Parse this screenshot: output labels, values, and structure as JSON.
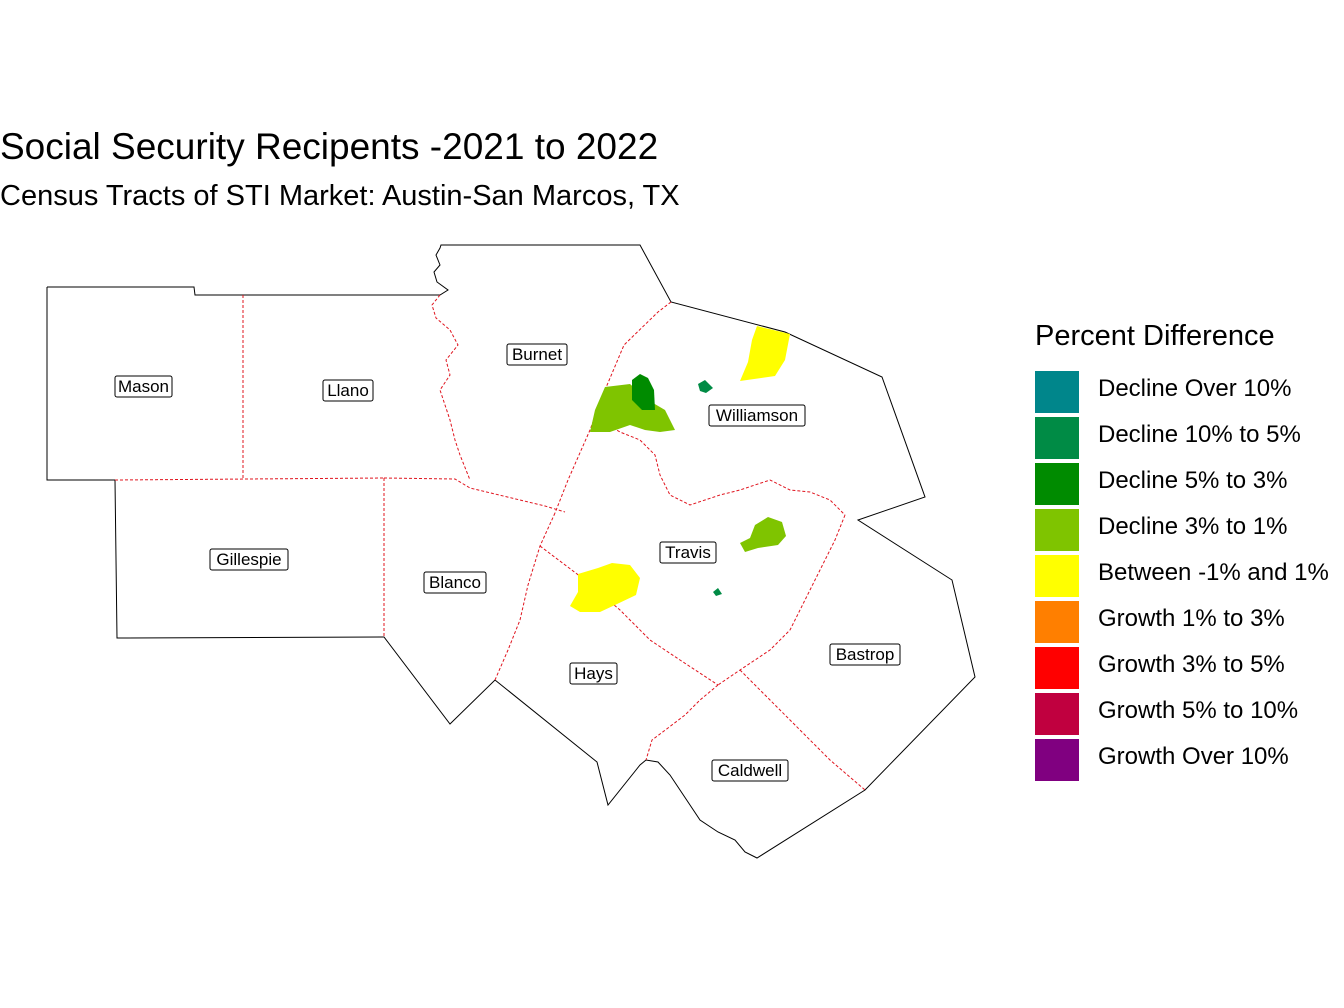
{
  "title": "Social Security Recipents -2021 to 2022",
  "subtitle": "Census Tracts of STI Market: Austin-San Marcos, TX",
  "counties": {
    "mason": "Mason",
    "llano": "Llano",
    "burnet": "Burnet",
    "williamson": "Williamson",
    "gillespie": "Gillespie",
    "blanco": "Blanco",
    "travis": "Travis",
    "hays": "Hays",
    "bastrop": "Bastrop",
    "caldwell": "Caldwell"
  },
  "legend": {
    "title": "Percent Difference",
    "items": [
      {
        "label": "Decline Over 10%",
        "color": "#00868B"
      },
      {
        "label": "Decline 10% to 5%",
        "color": "#008B45"
      },
      {
        "label": "Decline 5% to 3%",
        "color": "#008B00"
      },
      {
        "label": "Decline 3% to 1%",
        "color": "#7FC400"
      },
      {
        "label": "Between -1% and 1%",
        "color": "#FFFF00"
      },
      {
        "label": "Growth 1% to 3%",
        "color": "#FF7F00"
      },
      {
        "label": "Growth 3% to 5%",
        "color": "#FF0000"
      },
      {
        "label": "Growth 5% to 10%",
        "color": "#C0003F"
      },
      {
        "label": "Growth Over 10%",
        "color": "#800080"
      }
    ]
  }
}
